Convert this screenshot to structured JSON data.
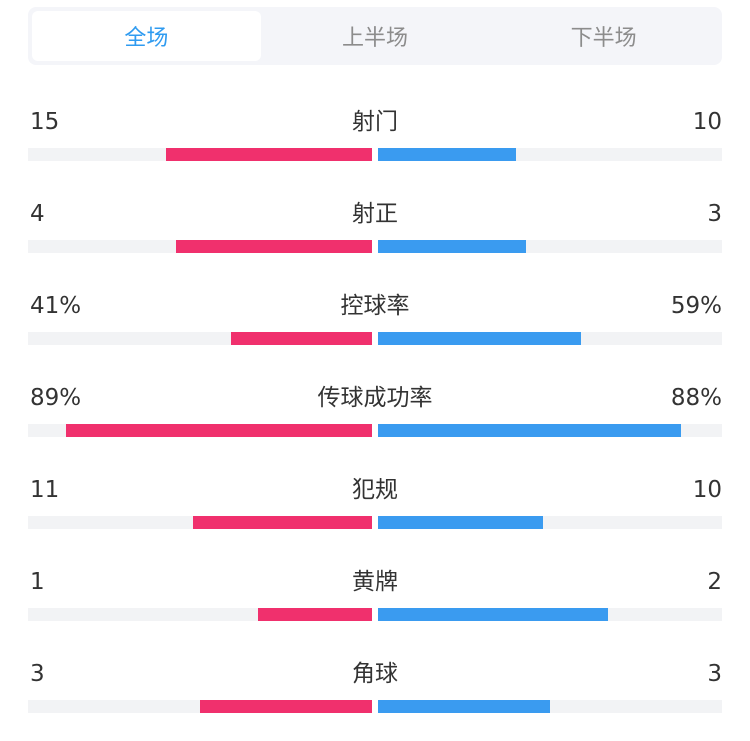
{
  "tabs": [
    {
      "label": "全场",
      "active": true
    },
    {
      "label": "上半场",
      "active": false
    },
    {
      "label": "下半场",
      "active": false
    }
  ],
  "colors": {
    "home": "#f0306d",
    "away": "#3a9bf0",
    "track": "#f2f3f5",
    "active_tab": "#2f9bf0"
  },
  "stats": [
    {
      "name": "射门",
      "home": "15",
      "away": "10",
      "home_ratio": 0.6,
      "away_ratio": 0.4
    },
    {
      "name": "射正",
      "home": "4",
      "away": "3",
      "home_ratio": 0.57,
      "away_ratio": 0.43
    },
    {
      "name": "控球率",
      "home": "41%",
      "away": "59%",
      "home_ratio": 0.41,
      "away_ratio": 0.59
    },
    {
      "name": "传球成功率",
      "home": "89%",
      "away": "88%",
      "home_ratio": 0.89,
      "away_ratio": 0.88
    },
    {
      "name": "犯规",
      "home": "11",
      "away": "10",
      "home_ratio": 0.52,
      "away_ratio": 0.48
    },
    {
      "name": "黄牌",
      "home": "1",
      "away": "2",
      "home_ratio": 0.33,
      "away_ratio": 0.67
    },
    {
      "name": "角球",
      "home": "3",
      "away": "3",
      "home_ratio": 0.5,
      "away_ratio": 0.5
    }
  ]
}
